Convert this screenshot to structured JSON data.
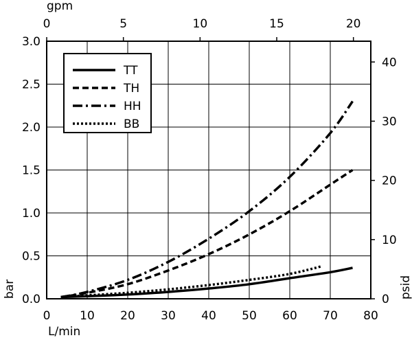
{
  "chart_data": {
    "type": "line",
    "title": "",
    "xlabel": "L/min",
    "xlabel_top": "gpm",
    "ylabel": "bar",
    "ylabel_right": "psid",
    "xlim": [
      0,
      80
    ],
    "ylim": [
      0,
      3.0
    ],
    "xlim_top": [
      0,
      21.134
    ],
    "ylim_right": [
      0,
      43.51
    ],
    "x_ticks": [
      0,
      10,
      20,
      30,
      40,
      50,
      60,
      70,
      80
    ],
    "y_ticks": [
      0.0,
      0.5,
      1.0,
      1.5,
      2.0,
      2.5,
      3.0
    ],
    "y_tick_labels": [
      "0.0",
      "0.5",
      "1.0",
      "1.5",
      "2.0",
      "2.5",
      "3.0"
    ],
    "x_top_ticks": [
      0,
      5,
      10,
      15,
      20
    ],
    "y_right_ticks": [
      0,
      10,
      20,
      30,
      40
    ],
    "grid": true,
    "legend_position": "top-left",
    "series": [
      {
        "name": "TT",
        "style": "solid",
        "x": [
          3.5,
          10,
          20,
          30,
          40,
          50,
          60,
          70,
          75.5
        ],
        "y": [
          0.02,
          0.03,
          0.05,
          0.08,
          0.12,
          0.17,
          0.24,
          0.31,
          0.36
        ]
      },
      {
        "name": "TH",
        "style": "dashed",
        "x": [
          3.5,
          10,
          20,
          30,
          40,
          50,
          60,
          70,
          75.5
        ],
        "y": [
          0.02,
          0.07,
          0.17,
          0.33,
          0.52,
          0.75,
          1.02,
          1.33,
          1.5
        ]
      },
      {
        "name": "HH",
        "style": "dashdot",
        "x": [
          3.5,
          10,
          20,
          30,
          40,
          50,
          60,
          70,
          75.5
        ],
        "y": [
          0.02,
          0.08,
          0.22,
          0.43,
          0.7,
          1.02,
          1.42,
          1.93,
          2.3
        ]
      },
      {
        "name": "BB",
        "style": "dotted",
        "x": [
          3.5,
          10,
          20,
          30,
          40,
          50,
          60,
          68
        ],
        "y": [
          0.02,
          0.04,
          0.07,
          0.11,
          0.16,
          0.22,
          0.29,
          0.38
        ]
      }
    ]
  }
}
